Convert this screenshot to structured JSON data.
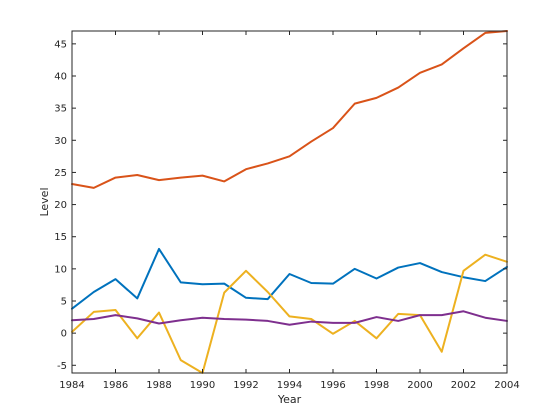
{
  "chart_data": {
    "type": "line",
    "xlabel": "Year",
    "ylabel": "Level",
    "xlim": [
      1984,
      2004
    ],
    "ylim": [
      -6.2,
      47
    ],
    "xticks": [
      1984,
      1986,
      1988,
      1990,
      1992,
      1994,
      1996,
      1998,
      2000,
      2002,
      2004
    ],
    "yticks": [
      -5,
      0,
      5,
      10,
      15,
      20,
      25,
      30,
      35,
      40,
      45
    ],
    "grid": false,
    "x": [
      1984,
      1985,
      1986,
      1987,
      1988,
      1989,
      1990,
      1991,
      1992,
      1993,
      1994,
      1995,
      1996,
      1997,
      1998,
      1999,
      2000,
      2001,
      2002,
      2003,
      2004
    ],
    "series": [
      {
        "color": "#0072BD",
        "values": [
          3.8,
          6.4,
          8.4,
          5.4,
          13.1,
          7.9,
          7.6,
          7.7,
          5.5,
          5.3,
          9.2,
          7.8,
          7.7,
          10.0,
          8.5,
          10.2,
          10.9,
          9.5,
          8.7,
          8.1,
          10.3
        ]
      },
      {
        "color": "#D95319",
        "values": [
          23.2,
          22.6,
          24.2,
          24.6,
          23.8,
          24.2,
          24.5,
          23.6,
          25.5,
          26.4,
          27.5,
          29.8,
          31.9,
          35.7,
          36.6,
          38.2,
          40.5,
          41.8,
          44.3,
          46.7,
          47.0
        ]
      },
      {
        "color": "#EDB120",
        "values": [
          0.2,
          3.3,
          3.6,
          -0.8,
          3.2,
          -4.2,
          -6.2,
          6.3,
          9.7,
          6.4,
          2.6,
          2.2,
          -0.1,
          1.9,
          -0.8,
          3.0,
          2.8,
          -2.9,
          9.7,
          12.2,
          11.1
        ]
      },
      {
        "color": "#7E2F8E",
        "values": [
          2.0,
          2.2,
          2.8,
          2.3,
          1.5,
          2.0,
          2.4,
          2.2,
          2.1,
          1.9,
          1.3,
          1.8,
          1.6,
          1.6,
          2.5,
          1.9,
          2.8,
          2.8,
          3.4,
          2.4,
          1.9
        ]
      }
    ]
  }
}
